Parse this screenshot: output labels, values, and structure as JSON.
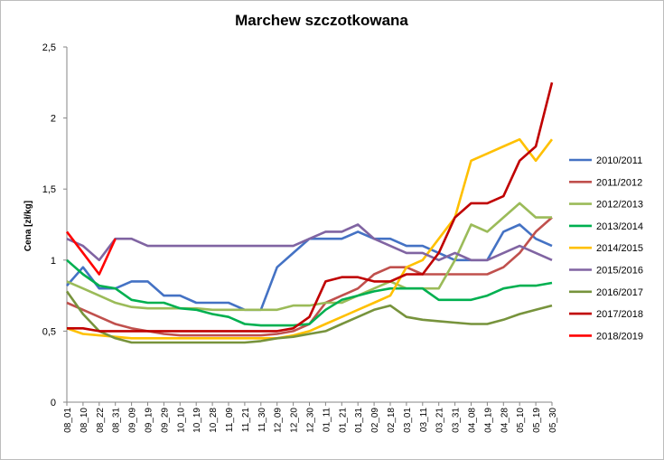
{
  "chart_data": {
    "type": "line",
    "title": "Marchew szczotkowana",
    "xlabel": "",
    "ylabel": "Cena [zł/kg]",
    "ylim": [
      0,
      2.5
    ],
    "y_ticks": [
      "0",
      "0,5",
      "1",
      "1,5",
      "2",
      "2,5"
    ],
    "grid": false,
    "legend_position": "right",
    "categories": [
      "08_01",
      "08_10",
      "08_22",
      "08_31",
      "09_09",
      "09_19",
      "09_29",
      "10_10",
      "10_19",
      "10_28",
      "11_09",
      "11_21",
      "11_30",
      "12_09",
      "12_20",
      "12_30",
      "01_11",
      "01_21",
      "01_31",
      "02_09",
      "02_18",
      "03_01",
      "03_11",
      "03_21",
      "03_31",
      "04_08",
      "04_19",
      "04_28",
      "05_10",
      "05_19",
      "05_30"
    ],
    "series": [
      {
        "name": "2010/2011",
        "color": "#4472C4",
        "values": [
          0.82,
          0.95,
          0.8,
          0.8,
          0.85,
          0.85,
          0.75,
          0.75,
          0.7,
          0.7,
          0.7,
          0.65,
          0.65,
          0.95,
          1.05,
          1.15,
          1.15,
          1.15,
          1.2,
          1.15,
          1.15,
          1.1,
          1.1,
          1.05,
          1.0,
          1.0,
          1.0,
          1.2,
          1.25,
          1.15,
          1.1
        ]
      },
      {
        "name": "2011/2012",
        "color": "#C0504D",
        "values": [
          0.7,
          0.65,
          0.6,
          0.55,
          0.52,
          0.5,
          0.48,
          0.47,
          0.47,
          0.47,
          0.47,
          0.47,
          0.47,
          0.48,
          0.5,
          0.55,
          0.7,
          0.75,
          0.8,
          0.9,
          0.95,
          0.95,
          0.9,
          0.9,
          0.9,
          0.9,
          0.9,
          0.95,
          1.05,
          1.2,
          1.3
        ]
      },
      {
        "name": "2012/2013",
        "color": "#9BBB59",
        "values": [
          0.85,
          0.8,
          0.75,
          0.7,
          0.67,
          0.66,
          0.66,
          0.66,
          0.66,
          0.65,
          0.65,
          0.65,
          0.65,
          0.65,
          0.68,
          0.68,
          0.7,
          0.7,
          0.75,
          0.8,
          0.85,
          0.8,
          0.8,
          0.8,
          1.0,
          1.25,
          1.2,
          1.3,
          1.4,
          1.3,
          1.3
        ]
      },
      {
        "name": "2013/2014",
        "color": "#00B050",
        "values": [
          1.0,
          0.9,
          0.82,
          0.8,
          0.72,
          0.7,
          0.7,
          0.66,
          0.65,
          0.62,
          0.6,
          0.55,
          0.54,
          0.54,
          0.54,
          0.55,
          0.65,
          0.72,
          0.75,
          0.78,
          0.8,
          0.8,
          0.8,
          0.72,
          0.72,
          0.72,
          0.75,
          0.8,
          0.82,
          0.82,
          0.84
        ]
      },
      {
        "name": "2014/2015",
        "color": "#FFC000",
        "values": [
          0.52,
          0.48,
          0.47,
          0.46,
          0.45,
          0.45,
          0.45,
          0.45,
          0.45,
          0.45,
          0.45,
          0.45,
          0.45,
          0.45,
          0.47,
          0.5,
          0.55,
          0.6,
          0.65,
          0.7,
          0.75,
          0.95,
          1.0,
          1.15,
          1.3,
          1.7,
          1.75,
          1.8,
          1.85,
          1.7,
          1.85
        ]
      },
      {
        "name": "2015/2016",
        "color": "#8064A2",
        "values": [
          1.15,
          1.1,
          1.0,
          1.15,
          1.15,
          1.1,
          1.1,
          1.1,
          1.1,
          1.1,
          1.1,
          1.1,
          1.1,
          1.1,
          1.1,
          1.15,
          1.2,
          1.2,
          1.25,
          1.15,
          1.1,
          1.05,
          1.05,
          1.0,
          1.05,
          1.0,
          1.0,
          1.05,
          1.1,
          1.05,
          1.0
        ]
      },
      {
        "name": "2016/2017",
        "color": "#77933C",
        "values": [
          0.78,
          0.62,
          0.5,
          0.45,
          0.42,
          0.42,
          0.42,
          0.42,
          0.42,
          0.42,
          0.42,
          0.42,
          0.43,
          0.45,
          0.46,
          0.48,
          0.5,
          0.55,
          0.6,
          0.65,
          0.68,
          0.6,
          0.58,
          0.57,
          0.56,
          0.55,
          0.55,
          0.58,
          0.62,
          0.65,
          0.68
        ]
      },
      {
        "name": "2017/2018",
        "color": "#C00000",
        "values": [
          0.52,
          0.52,
          0.5,
          0.5,
          0.5,
          0.5,
          0.5,
          0.5,
          0.5,
          0.5,
          0.5,
          0.5,
          0.5,
          0.5,
          0.52,
          0.6,
          0.85,
          0.88,
          0.88,
          0.85,
          0.85,
          0.9,
          0.9,
          1.05,
          1.3,
          1.4,
          1.4,
          1.45,
          1.7,
          1.8,
          2.25
        ]
      },
      {
        "name": "2018/2019",
        "color": "#FF0000",
        "values": [
          1.2,
          1.05,
          0.9,
          1.15,
          null,
          null,
          null,
          null,
          null,
          null,
          null,
          null,
          null,
          null,
          null,
          null,
          null,
          null,
          null,
          null,
          null,
          null,
          null,
          null,
          null,
          null,
          null,
          null,
          null,
          null,
          null
        ]
      }
    ]
  }
}
